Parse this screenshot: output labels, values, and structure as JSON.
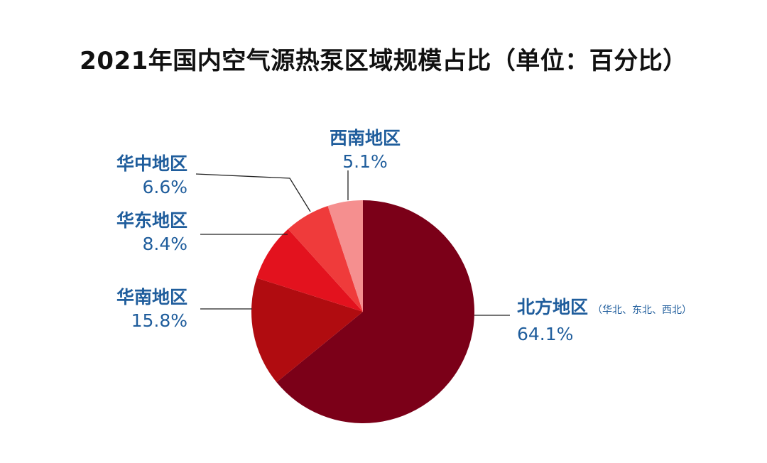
{
  "chart_data": {
    "type": "pie",
    "title": "2021年国内空气源热泵区域规模占比（单位：百分比）",
    "unit": "%",
    "slices": [
      {
        "name": "北方地区",
        "note": "（华北、东北、西北）",
        "value": 64.1,
        "value_label": "64.1%",
        "color": "#7b0018"
      },
      {
        "name": "华南地区",
        "note": "",
        "value": 15.8,
        "value_label": "15.8%",
        "color": "#b00c10"
      },
      {
        "name": "华东地区",
        "note": "",
        "value": 8.4,
        "value_label": "8.4%",
        "color": "#e3121e"
      },
      {
        "name": "华中地区",
        "note": "",
        "value": 6.6,
        "value_label": "6.6%",
        "color": "#ef3b3b"
      },
      {
        "name": "西南地区",
        "note": "",
        "value": 5.1,
        "value_label": "5.1%",
        "color": "#f58f8f"
      }
    ],
    "start_angle": "12 o'clock",
    "direction": "clockwise",
    "label_color": "#1f5d9c",
    "leader_line_color": "#222222"
  }
}
